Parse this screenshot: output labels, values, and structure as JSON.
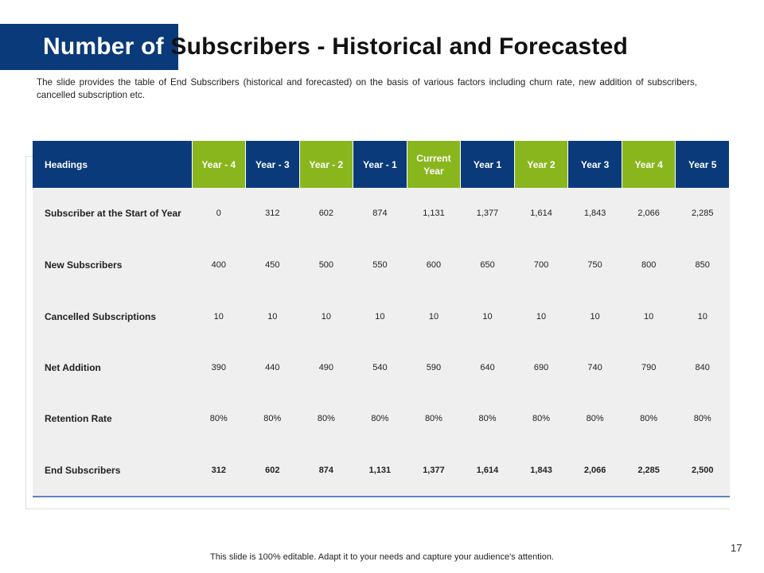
{
  "title": {
    "part1": "Number of",
    "part2": "Subscribers - Historical and Forecasted"
  },
  "description": "The slide provides the table of End Subscribers (historical and forecasted) on the basis of various factors including churn rate, new addition of subscribers, cancelled subscription etc.",
  "colors": {
    "navy": "#0a3a7a",
    "green": "#8ab61d",
    "row_bg": "#efefef",
    "underline": "#5b82c0"
  },
  "table": {
    "headers": [
      {
        "label": "Headings",
        "color": "navy"
      },
      {
        "label": "Year - 4",
        "color": "green"
      },
      {
        "label": "Year - 3",
        "color": "navy"
      },
      {
        "label": "Year - 2",
        "color": "green"
      },
      {
        "label": "Year - 1",
        "color": "navy"
      },
      {
        "label": "Current Year",
        "color": "green"
      },
      {
        "label": "Year 1",
        "color": "navy"
      },
      {
        "label": "Year 2",
        "color": "green"
      },
      {
        "label": "Year 3",
        "color": "navy"
      },
      {
        "label": "Year 4",
        "color": "green"
      },
      {
        "label": "Year 5",
        "color": "navy"
      }
    ],
    "rows": [
      {
        "label": "Subscriber at the Start of Year",
        "values": [
          "0",
          "312",
          "602",
          "874",
          "1,131",
          "1,377",
          "1,614",
          "1,843",
          "2,066",
          "2,285"
        ]
      },
      {
        "label": "New Subscribers",
        "values": [
          "400",
          "450",
          "500",
          "550",
          "600",
          "650",
          "700",
          "750",
          "800",
          "850"
        ]
      },
      {
        "label": "Cancelled Subscriptions",
        "values": [
          "10",
          "10",
          "10",
          "10",
          "10",
          "10",
          "10",
          "10",
          "10",
          "10"
        ]
      },
      {
        "label": "Net Addition",
        "values": [
          "390",
          "440",
          "490",
          "540",
          "590",
          "640",
          "690",
          "740",
          "790",
          "840"
        ]
      },
      {
        "label": "Retention Rate",
        "values": [
          "80%",
          "80%",
          "80%",
          "80%",
          "80%",
          "80%",
          "80%",
          "80%",
          "80%",
          "80%"
        ]
      },
      {
        "label": "End Subscribers",
        "values": [
          "312",
          "602",
          "874",
          "1,131",
          "1,377",
          "1,614",
          "1,843",
          "2,066",
          "2,285",
          "2,500"
        ],
        "bold": true
      }
    ]
  },
  "page_number": "17",
  "footer": "This slide is 100% editable. Adapt it to your needs and capture your audience's attention."
}
